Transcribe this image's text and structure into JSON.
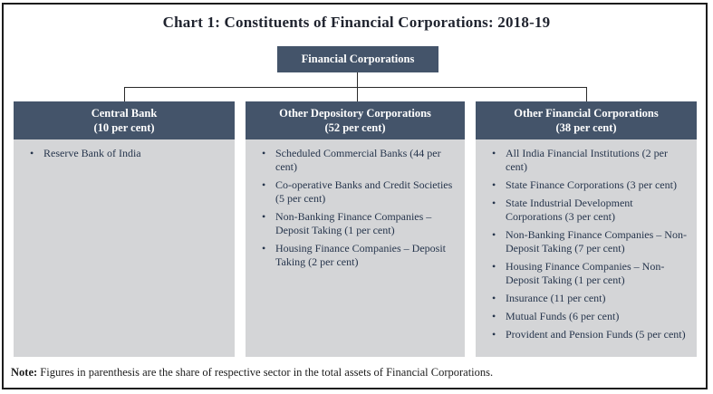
{
  "title": "Chart 1: Constituents of Financial Corporations: 2018-19",
  "root": {
    "label": "Financial Corporations"
  },
  "columns": [
    {
      "header": "Central Bank",
      "share": "(10 per cent)",
      "items": [
        "Reserve Bank of India"
      ]
    },
    {
      "header": "Other Depository Corporations",
      "share": "(52 per cent)",
      "items": [
        "Scheduled Commercial Banks (44 per cent)",
        "Co-operative Banks and Credit Societies (5 per cent)",
        "Non-Banking Finance Companies – Deposit Taking (1 per cent)",
        "Housing Finance Companies – Deposit Taking (2 per cent)"
      ]
    },
    {
      "header": "Other Financial Corporations",
      "share": "(38 per cent)",
      "items": [
        "All India Financial Institutions (2 per cent)",
        "State Finance Corporations (3 per cent)",
        "State Industrial Development Corporations (3 per cent)",
        "Non-Banking Finance Companies – Non-Deposit Taking (7 per cent)",
        "Housing Finance Companies – Non-Deposit Taking (1 per cent)",
        "Insurance (11 per cent)",
        "Mutual Funds (6 per cent)",
        "Provident and Pension Funds (5 per cent)"
      ]
    }
  ],
  "note": {
    "label": "Note:",
    "text": "Figures in parenthesis are the share of respective sector in the total assets of Financial Corporations."
  },
  "colors": {
    "header_bg": "#44546a",
    "panel_bg": "#d4d5d7",
    "body_text": "#26354c",
    "border": "#1c1c1c"
  }
}
